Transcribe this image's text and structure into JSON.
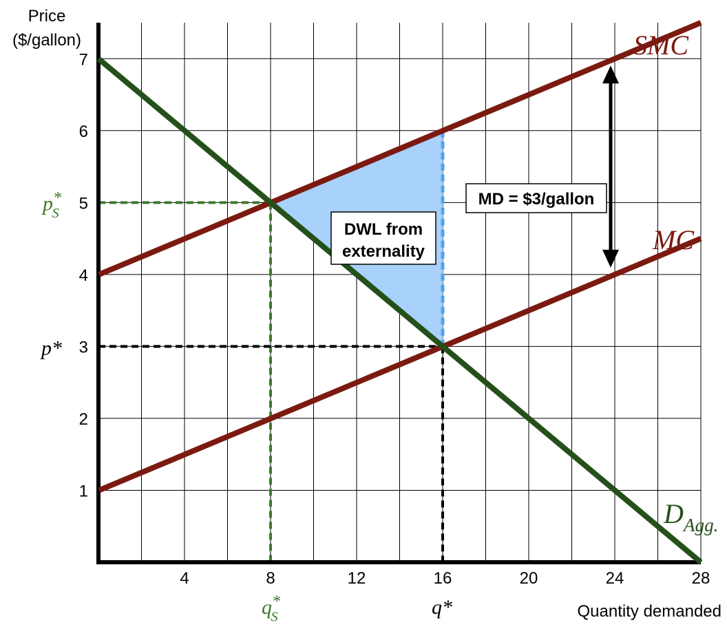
{
  "chart_data": {
    "type": "line",
    "title": "",
    "ylabel_line1": "Price",
    "ylabel_line2": "($/gallon)",
    "xlabel": "Quantity demanded",
    "xlim": [
      0,
      28
    ],
    "ylim": [
      0,
      7.5
    ],
    "x_ticks": [
      4,
      8,
      12,
      16,
      20,
      24,
      28
    ],
    "y_ticks": [
      1,
      2,
      3,
      4,
      5,
      6,
      7
    ],
    "grid": true,
    "series": [
      {
        "name": "SMC",
        "x": [
          0,
          28
        ],
        "y": [
          4,
          7.5
        ]
      },
      {
        "name": "MC",
        "x": [
          0,
          28
        ],
        "y": [
          1,
          4.5
        ]
      },
      {
        "name": "D_Agg.",
        "x": [
          0,
          28
        ],
        "y": [
          7,
          0
        ]
      }
    ],
    "equilibria": [
      {
        "name": "social_optimum",
        "q": 8,
        "p": 5,
        "q_label": "q",
        "q_sub": "S",
        "p_label": "p",
        "p_sub": "S"
      },
      {
        "name": "market",
        "q": 16,
        "p": 3,
        "q_label": "q*",
        "p_label": "p*"
      }
    ],
    "dwl_region": {
      "x": [
        8,
        16,
        16
      ],
      "y": [
        5,
        6,
        3
      ]
    },
    "annotations": {
      "dwl_line1": "DWL from",
      "dwl_line2": "externality",
      "md_label": "MD = $3/gallon",
      "md_arrow": {
        "x": 24,
        "y_from": 4,
        "y_to": 7
      }
    },
    "labels": {
      "smc": "SMC",
      "mc": "MC",
      "demand": "D",
      "demand_sub": "Agg.",
      "star": "*"
    },
    "colors": {
      "smc": "#7b1a10",
      "mc": "#7b1a10",
      "demand": "#24501a",
      "dwl_fill": "#a8d1fb",
      "dwl_edge": "#4fa3f0",
      "optimum_dash": "#3d7a2a",
      "market_dash": "#000000",
      "grid": "#000000"
    }
  }
}
